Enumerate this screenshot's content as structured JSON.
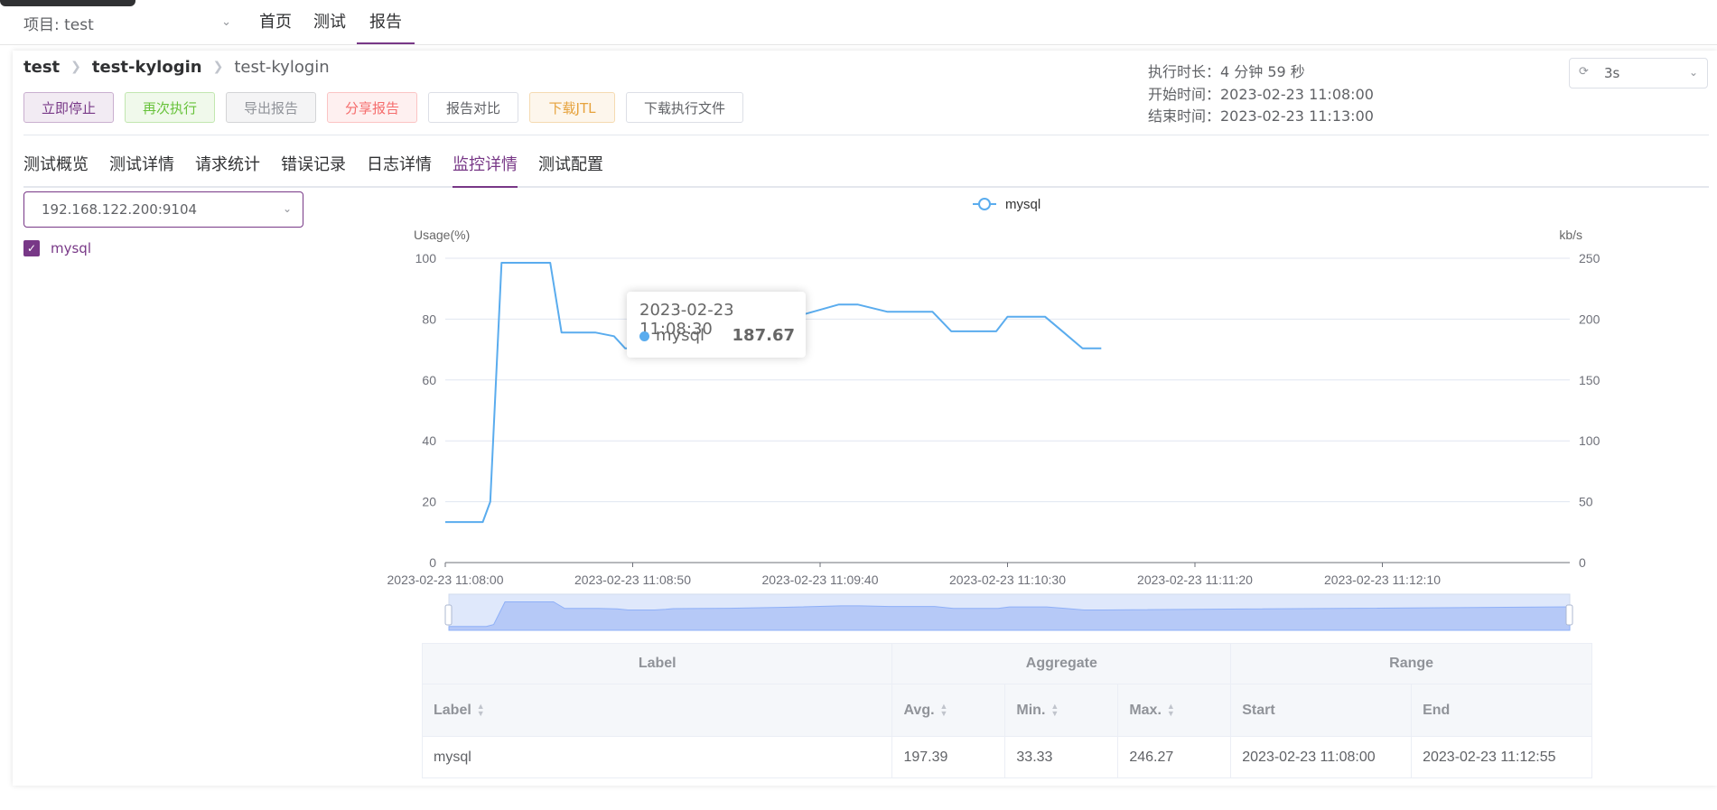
{
  "header": {
    "project_label": "项目: test",
    "nav": [
      "首页",
      "测试",
      "报告"
    ]
  },
  "breadcrumb": [
    "test",
    "test-kylogin",
    "test-kylogin"
  ],
  "buttons": {
    "stop": "立即停止",
    "again": "再次执行",
    "export": "导出报告",
    "share": "分享报告",
    "compare": "报告对比",
    "jtl": "下载JTL",
    "download": "下载执行文件"
  },
  "meta": {
    "duration": "执行时长：4 分钟 59 秒",
    "start": "开始时间：2023-02-23 11:08:00",
    "end": "结束时间：2023-02-23 11:13:00"
  },
  "refresh": {
    "value": "3s"
  },
  "tabs": [
    "测试概览",
    "测试详情",
    "请求统计",
    "错误记录",
    "日志详情",
    "监控详情",
    "测试配置"
  ],
  "monitor": {
    "host": "192.168.122.200:9104",
    "checkbox_label": "mysql"
  },
  "colors": {
    "accent": "#783887",
    "series": "#5aacee"
  },
  "chart_data": {
    "type": "line",
    "legend": [
      "mysql"
    ],
    "legend_position": "top-center",
    "y_left_label": "Usage(%)",
    "y_right_label": "kb/s",
    "y_left_range": [
      0,
      100
    ],
    "y_right_range": [
      0,
      250
    ],
    "y_left_ticks": [
      "100",
      "80",
      "60",
      "40",
      "20",
      "0"
    ],
    "y_right_ticks": [
      "250",
      "200",
      "150",
      "100",
      "50",
      "0"
    ],
    "x_tick_labels": [
      "2023-02-23 11:08:00",
      "2023-02-23 11:08:50",
      "2023-02-23 11:09:40",
      "2023-02-23 11:10:30",
      "2023-02-23 11:11:20",
      "2023-02-23 11:12:10"
    ],
    "grid": true,
    "data_zoom": true,
    "series": [
      {
        "name": "mysql",
        "axis": "right",
        "points": [
          [
            0,
            33.3
          ],
          [
            10,
            33.3
          ],
          [
            12,
            50
          ],
          [
            15,
            246.3
          ],
          [
            28,
            246.3
          ],
          [
            31,
            189
          ],
          [
            40,
            189
          ],
          [
            45,
            186
          ],
          [
            48,
            176
          ],
          [
            55,
            176
          ],
          [
            58,
            181
          ],
          [
            60,
            187.67
          ],
          [
            75,
            191
          ],
          [
            90,
            199
          ],
          [
            105,
            212
          ],
          [
            110,
            212
          ],
          [
            118,
            206
          ],
          [
            130,
            206
          ],
          [
            135,
            190
          ],
          [
            147,
            190
          ],
          [
            150,
            202
          ],
          [
            160,
            202
          ],
          [
            165,
            189
          ],
          [
            170,
            176
          ],
          [
            175,
            176
          ]
        ]
      }
    ]
  },
  "tooltip": {
    "time": "2023-02-23 11:08:30",
    "series": "mysql",
    "value": "187.67"
  },
  "table": {
    "group_headers": [
      "Label",
      "Aggregate",
      "Range"
    ],
    "columns": [
      "Label",
      "Avg.",
      "Min.",
      "Max.",
      "Start",
      "End"
    ],
    "rows": [
      [
        "mysql",
        "197.39",
        "33.33",
        "246.27",
        "2023-02-23 11:08:00",
        "2023-02-23 11:12:55"
      ]
    ]
  }
}
